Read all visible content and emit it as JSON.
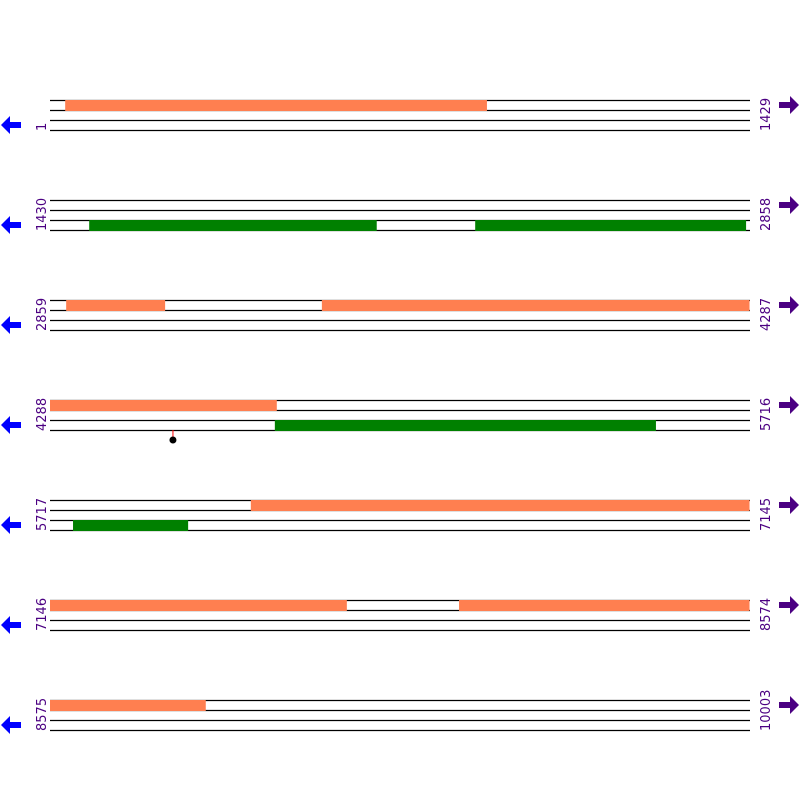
{
  "colors": {
    "forward_feature": "#ff7f50",
    "reverse_feature": "#008000",
    "left_arrow": "#0000ff",
    "right_arrow": "#4b0082",
    "label": "#4b0082",
    "marker_stem": "#ff0000",
    "marker_dot": "#000000"
  },
  "bp_per_row": 1429,
  "rows": [
    {
      "start_label": "1",
      "end_label": "1429",
      "start": 1,
      "features": [
        {
          "strand": "forward",
          "start": 32,
          "end": 893
        }
      ]
    },
    {
      "start_label": "1430",
      "end_label": "2858",
      "start": 1430,
      "features": [
        {
          "strand": "reverse",
          "start": 1510,
          "end": 2097
        },
        {
          "strand": "reverse",
          "start": 2298,
          "end": 2851
        }
      ]
    },
    {
      "start_label": "2859",
      "end_label": "4287",
      "start": 2859,
      "features": [
        {
          "strand": "forward",
          "start": 2892,
          "end": 3094
        },
        {
          "strand": "forward",
          "start": 3414,
          "end": 4287
        }
      ]
    },
    {
      "start_label": "4288",
      "end_label": "5716",
      "start": 4288,
      "features": [
        {
          "strand": "forward",
          "start": 4288,
          "end": 4751
        },
        {
          "strand": "reverse",
          "start": 4747,
          "end": 5525
        }
      ],
      "markers": [
        {
          "position": 4539
        }
      ]
    },
    {
      "start_label": "5717",
      "end_label": "7145",
      "start": 5717,
      "features": [
        {
          "strand": "forward",
          "start": 6127,
          "end": 7145
        },
        {
          "strand": "reverse",
          "start": 5764,
          "end": 5999
        }
      ]
    },
    {
      "start_label": "7146",
      "end_label": "8574",
      "start": 7146,
      "features": [
        {
          "strand": "forward",
          "start": 7146,
          "end": 7752
        },
        {
          "strand": "forward",
          "start": 7981,
          "end": 8574
        }
      ]
    },
    {
      "start_label": "8575",
      "end_label": "10003",
      "start": 8575,
      "features": [
        {
          "strand": "forward",
          "start": 8575,
          "end": 8893
        }
      ]
    }
  ]
}
